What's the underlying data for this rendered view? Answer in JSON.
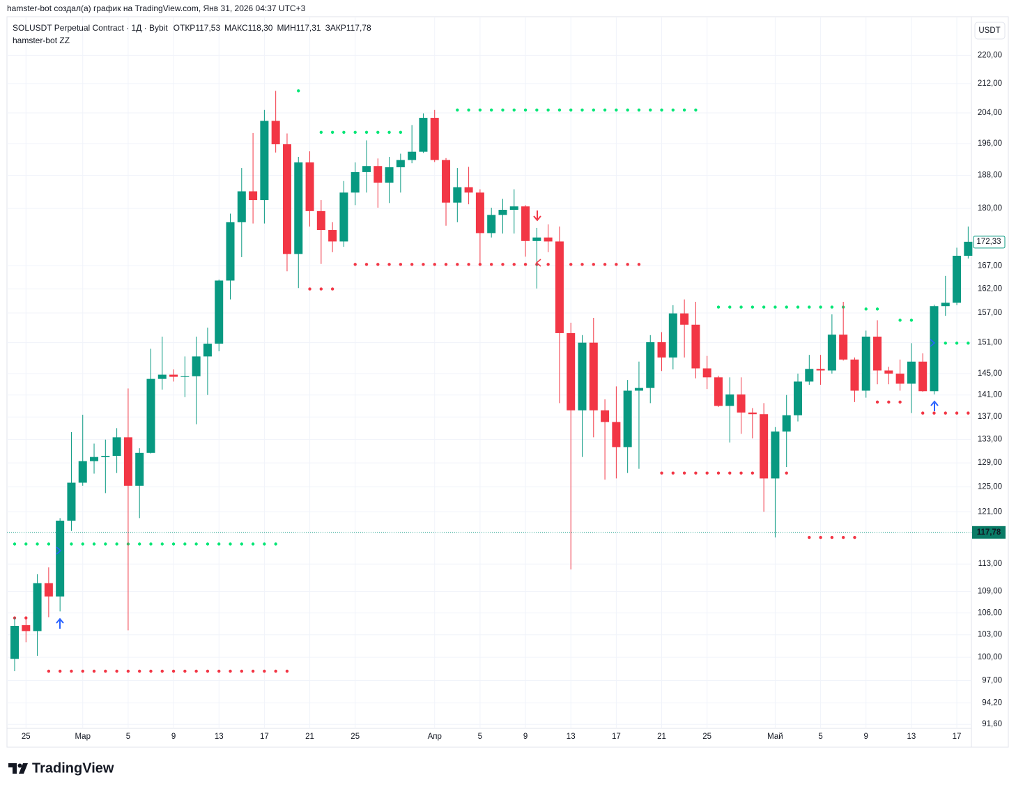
{
  "chart_data": {
    "type": "candlestick",
    "attribution": "hamster-bot создал(а) график на TradingView.com, Янв 31, 2026 04:37 UTC+3",
    "title": "SOLUSDT Perpetual Contract · 1Д · Bybit",
    "legend_values": [
      {
        "name": "ОТКР",
        "label": "117,53"
      },
      {
        "name": "МАКС",
        "label": "118,30"
      },
      {
        "name": "МИН",
        "label": "117,31"
      },
      {
        "name": "ЗАКР",
        "label": "117,78"
      }
    ],
    "indicator_name": "hamster-bot ZZ",
    "currency": "USDT",
    "logo": "TradingView",
    "log_scale": true,
    "grid": true,
    "up_color": "#089981",
    "down_color": "#f23645",
    "categories": [
      null,
      "25",
      null,
      null,
      null,
      null,
      "Мар",
      null,
      null,
      null,
      "5",
      null,
      null,
      null,
      "9",
      null,
      null,
      null,
      "13",
      null,
      null,
      null,
      "17",
      null,
      null,
      null,
      "21",
      null,
      null,
      null,
      "25",
      null,
      null,
      null,
      null,
      null,
      null,
      "Апр",
      null,
      null,
      null,
      "5",
      null,
      null,
      null,
      "9",
      null,
      null,
      null,
      "13",
      null,
      null,
      null,
      "17",
      null,
      null,
      null,
      "21",
      null,
      null,
      null,
      "25",
      null,
      null,
      null,
      null,
      null,
      "Май",
      null,
      null,
      null,
      "5",
      null,
      null,
      null,
      "9",
      null,
      null,
      null,
      "13",
      null,
      null,
      null,
      "17",
      null
    ],
    "open": [
      99.8,
      104.3,
      103.5,
      110.2,
      108.3,
      119.6,
      125.7,
      129.3,
      130,
      130.2,
      133.4,
      125.2,
      130.7,
      144,
      144.8,
      144.4,
      144.5,
      148.3,
      150.8,
      163.8,
      176.8,
      184.1,
      182,
      201.9,
      195.8,
      169.6,
      191.2,
      179.4,
      175,
      172.4,
      183.8,
      188.8,
      190.3,
      186.2,
      190,
      191.8,
      193.9,
      202.7,
      191.8,
      181.4,
      185.1,
      183.8,
      174.3,
      178.5,
      179.7,
      180.5,
      172.5,
      173.3,
      172.4,
      152.9,
      138.2,
      151,
      138.2,
      136.1,
      131.7,
      141.8,
      142.3,
      151.1,
      148.1,
      156.9,
      154.6,
      146,
      144.3,
      139,
      141.1,
      137.8,
      137.5,
      126.4,
      134.4,
      137.3,
      143.5,
      145.9,
      145.6,
      152.6,
      147.7,
      141.8,
      152.2,
      145.6,
      145,
      143.1,
      147.3,
      141.7,
      158.4,
      159.1,
      169.2
    ],
    "high": [
      105.4,
      105.5,
      111.5,
      112.5,
      120,
      134.3,
      137.4,
      132.3,
      133,
      135,
      142.2,
      131.5,
      149.8,
      152.2,
      145.8,
      148.3,
      152.2,
      154,
      164,
      178.8,
      189.8,
      198.7,
      204.8,
      210,
      198.6,
      192.6,
      194,
      182,
      176.8,
      186.6,
      191.2,
      196.8,
      192.2,
      192.6,
      193.4,
      200.8,
      203.9,
      204.8,
      192.3,
      189.8,
      190.1,
      184.6,
      180.2,
      182.3,
      184.6,
      180.8,
      175.5,
      176.3,
      175.8,
      155,
      152.5,
      156,
      140.2,
      142.6,
      143.8,
      147.3,
      152.5,
      153.1,
      158.6,
      159.8,
      159.3,
      148.4,
      144.6,
      144.3,
      144.3,
      138.6,
      139.5,
      135.2,
      141,
      145,
      148.6,
      148.6,
      156.7,
      159.3,
      148.1,
      153.4,
      155.5,
      146.3,
      147.7,
      150.9,
      148.9,
      158.7,
      164.8,
      171,
      175.8
    ],
    "low": [
      98.2,
      102,
      100.2,
      105.4,
      106.2,
      118,
      125.2,
      127.2,
      124,
      127.3,
      103.6,
      120,
      130.6,
      142,
      143.5,
      140.6,
      135.7,
      141,
      149.3,
      159.8,
      168.9,
      176.5,
      176.5,
      193.7,
      165.8,
      162.2,
      175.8,
      167.4,
      170,
      171.2,
      180.8,
      183.8,
      180.2,
      181.3,
      183.8,
      191,
      193.6,
      191.3,
      176,
      176.8,
      181,
      167,
      173.3,
      174.2,
      174.2,
      169,
      162.1,
      170,
      139.5,
      112.2,
      130,
      133.4,
      126.2,
      126.4,
      127.3,
      128,
      139.5,
      145.5,
      145.8,
      148.1,
      144.1,
      142.1,
      138.8,
      132.5,
      134,
      133.2,
      121,
      117,
      128.3,
      136.2,
      142.9,
      142.9,
      145,
      147.5,
      139.7,
      140.5,
      143,
      143,
      141.8,
      137.7,
      141.6,
      141.1,
      156.4,
      158.6,
      168.6
    ],
    "close": [
      104.2,
      103.5,
      110.2,
      108.3,
      119.6,
      125.7,
      129.3,
      130,
      130.2,
      133.4,
      125.2,
      130.7,
      144,
      144.8,
      144.4,
      144.5,
      148.3,
      150.8,
      163.8,
      176.8,
      184.1,
      182,
      201.9,
      195.8,
      169.6,
      191.2,
      179.4,
      175,
      172.4,
      183.8,
      188.8,
      190.3,
      186.2,
      190,
      191.8,
      193.9,
      202.7,
      191.8,
      181.4,
      185.1,
      183.8,
      174.3,
      178.5,
      179.7,
      180.5,
      172.5,
      173.3,
      172.4,
      152.9,
      138.2,
      151,
      138.2,
      136.1,
      131.7,
      141.8,
      142.3,
      151.1,
      148.1,
      156.9,
      154.6,
      146,
      144.3,
      139,
      141.1,
      137.8,
      137.5,
      126.4,
      134.4,
      137.3,
      143.5,
      145.9,
      145.6,
      152.6,
      147.7,
      141.8,
      152.2,
      145.6,
      145,
      143.1,
      147.3,
      141.7,
      158.4,
      159.1,
      169.2,
      172.33
    ],
    "indicator_series": [
      {
        "color": "#00e676",
        "values": [
          116,
          116,
          116,
          116,
          116,
          116,
          116,
          116,
          116,
          116,
          116,
          116,
          116,
          116,
          116,
          116,
          116,
          116,
          116,
          116,
          116,
          116,
          116,
          116,
          null,
          210,
          null,
          198.9,
          198.9,
          198.9,
          198.9,
          198.9,
          198.9,
          198.9,
          198.9,
          null,
          null,
          null,
          null,
          204.8,
          204.8,
          204.8,
          204.8,
          204.8,
          204.8,
          204.8,
          204.8,
          204.8,
          204.8,
          204.8,
          204.8,
          204.8,
          204.8,
          204.8,
          204.8,
          204.8,
          204.8,
          204.8,
          204.8,
          204.8,
          204.8,
          null,
          158.2,
          158.2,
          158.2,
          158.2,
          158.2,
          158.2,
          158.2,
          158.2,
          158.2,
          158.2,
          158.2,
          158.2,
          null,
          157.8,
          157.8,
          null,
          155.5,
          155.5,
          null,
          null,
          150.9,
          150.9,
          150.9
        ]
      },
      {
        "color": "#f23645",
        "values": [
          105.3,
          105.3,
          null,
          98.2,
          98.2,
          98.2,
          98.2,
          98.2,
          98.2,
          98.2,
          98.2,
          98.2,
          98.2,
          98.2,
          98.2,
          98.2,
          98.2,
          98.2,
          98.2,
          98.2,
          98.2,
          98.2,
          98.2,
          98.2,
          98.2,
          null,
          162,
          162,
          162,
          null,
          167.3,
          167.3,
          167.3,
          167.3,
          167.3,
          167.3,
          167.3,
          167.3,
          167.3,
          167.3,
          167.3,
          167.3,
          167.3,
          167.3,
          167.3,
          167.3,
          167.3,
          167.3,
          167.3,
          167.3,
          167.3,
          167.3,
          167.3,
          167.3,
          167.3,
          167.3,
          null,
          127.3,
          127.3,
          127.3,
          127.3,
          127.3,
          127.3,
          127.3,
          127.3,
          127.3,
          127.3,
          127.3,
          127.3,
          null,
          117,
          117,
          117,
          117,
          117,
          null,
          139.7,
          139.7,
          139.7,
          null,
          137.7,
          137.7,
          137.7,
          137.7,
          137.7
        ]
      }
    ],
    "last_price": {
      "value": 172.33,
      "label": "172,33"
    },
    "price_line": {
      "value": 117.78,
      "label": "117,78"
    },
    "ylim": [
      91.2,
      231.4
    ],
    "yticks": [
      {
        "value": 220,
        "label": "220,00"
      },
      {
        "value": 212,
        "label": "212,00"
      },
      {
        "value": 204,
        "label": "204,00"
      },
      {
        "value": 196,
        "label": "196,00"
      },
      {
        "value": 188,
        "label": "188,00"
      },
      {
        "value": 180,
        "label": "180,00"
      },
      {
        "value": 167,
        "label": "167,00"
      },
      {
        "value": 162,
        "label": "162,00"
      },
      {
        "value": 157,
        "label": "157,00"
      },
      {
        "value": 151,
        "label": "151,00"
      },
      {
        "value": 145,
        "label": "145,00"
      },
      {
        "value": 141,
        "label": "141,00"
      },
      {
        "value": 137,
        "label": "137,00"
      },
      {
        "value": 133,
        "label": "133,00"
      },
      {
        "value": 129,
        "label": "129,00"
      },
      {
        "value": 125,
        "label": "125,00"
      },
      {
        "value": 121,
        "label": "121,00"
      },
      {
        "value": 113,
        "label": "113,00"
      },
      {
        "value": 109,
        "label": "109,00"
      },
      {
        "value": 106,
        "label": "106,00"
      },
      {
        "value": 103,
        "label": "103,00"
      },
      {
        "value": 100,
        "label": "100,00"
      },
      {
        "value": 97,
        "label": "97,00"
      },
      {
        "value": 94.2,
        "label": "94,20"
      },
      {
        "value": 91.6,
        "label": "91,60"
      }
    ]
  }
}
